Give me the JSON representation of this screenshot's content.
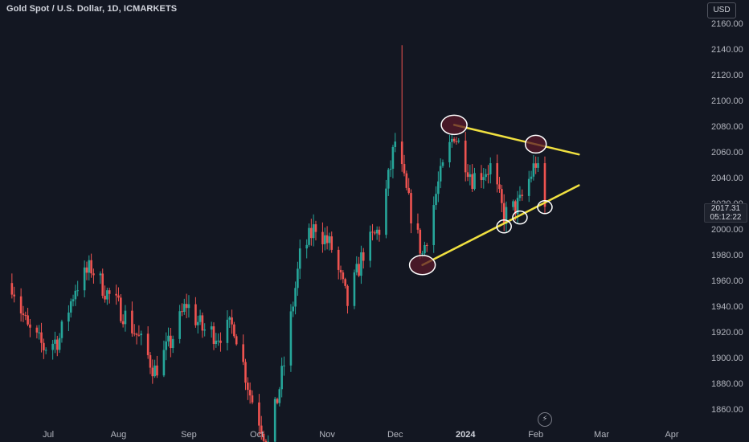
{
  "header": {
    "title": "Gold Spot / U.S. Dollar, 1D, ICMARKETS"
  },
  "currency_button": "USD",
  "price_tag": {
    "price": "2017.31",
    "countdown": "05:12:22"
  },
  "icons": {
    "bolt": "lightning-icon"
  },
  "colors": {
    "background": "#131722",
    "bull": "#26a69a",
    "bear": "#ef5350",
    "trendline": "#f0e040",
    "circle_fill": "#5a1a2a",
    "circle_stroke": "#ffffff"
  },
  "chart_data": {
    "type": "candlestick",
    "title": "Gold Spot / U.S. Dollar, 1D, ICMARKETS",
    "ylim": [
      1850,
      2168
    ],
    "y_ticks": [
      1860,
      1880,
      1900,
      1920,
      1940,
      1960,
      1980,
      2000,
      2020,
      2040,
      2060,
      2080,
      2100,
      2120,
      2140,
      2160
    ],
    "y_tick_labels": [
      "1860.00",
      "1880.00",
      "1900.00",
      "1920.00",
      "1940.00",
      "1960.00",
      "1980.00",
      "2000.00",
      "2020.00",
      "2040.00",
      "2060.00",
      "2080.00",
      "2100.00",
      "2120.00",
      "2140.00",
      "2160.00"
    ],
    "x_ticks": [
      {
        "label": "Jul",
        "date": "2023-07-01",
        "bold": false
      },
      {
        "label": "Aug",
        "date": "2023-08-01",
        "bold": false
      },
      {
        "label": "Sep",
        "date": "2023-09-01",
        "bold": false
      },
      {
        "label": "Oct",
        "date": "2023-10-01",
        "bold": false
      },
      {
        "label": "Nov",
        "date": "2023-11-01",
        "bold": false
      },
      {
        "label": "Dec",
        "date": "2023-12-01",
        "bold": false
      },
      {
        "label": "2024",
        "date": "2024-01-01",
        "bold": true
      },
      {
        "label": "Feb",
        "date": "2024-02-01",
        "bold": false
      },
      {
        "label": "Mar",
        "date": "2024-03-01",
        "bold": false
      },
      {
        "label": "Apr",
        "date": "2024-04-01",
        "bold": false
      }
    ],
    "series": [
      {
        "type": "candles",
        "keyframes": [
          [
            "2023-06-15",
            1958
          ],
          [
            "2023-06-22",
            1922
          ],
          [
            "2023-06-29",
            1908
          ],
          [
            "2023-07-06",
            1915
          ],
          [
            "2023-07-13",
            1955
          ],
          [
            "2023-07-20",
            1970
          ],
          [
            "2023-07-27",
            1950
          ],
          [
            "2023-08-03",
            1935
          ],
          [
            "2023-08-10",
            1915
          ],
          [
            "2023-08-17",
            1890
          ],
          [
            "2023-08-24",
            1912
          ],
          [
            "2023-08-31",
            1942
          ],
          [
            "2023-09-07",
            1922
          ],
          [
            "2023-09-14",
            1918
          ],
          [
            "2023-09-21",
            1925
          ],
          [
            "2023-09-28",
            1872
          ],
          [
            "2023-10-06",
            1832
          ],
          [
            "2023-10-13",
            1895
          ],
          [
            "2023-10-20",
            1978
          ],
          [
            "2023-10-27",
            2003
          ],
          [
            "2023-11-03",
            1985
          ],
          [
            "2023-11-10",
            1942
          ],
          [
            "2023-11-17",
            1982
          ],
          [
            "2023-11-24",
            2000
          ],
          [
            "2023-12-01",
            2068
          ],
          [
            "2023-12-08",
            2012
          ],
          [
            "2023-12-13",
            1980
          ],
          [
            "2023-12-20",
            2035
          ],
          [
            "2023-12-27",
            2075
          ],
          [
            "2024-01-04",
            2040
          ],
          [
            "2024-01-12",
            2048
          ],
          [
            "2024-01-18",
            2010
          ],
          [
            "2024-01-25",
            2020
          ],
          [
            "2024-02-01",
            2052
          ],
          [
            "2024-02-05",
            2017.31
          ]
        ],
        "highlight_highs": [
          [
            "2023-12-04",
            2143
          ]
        ]
      }
    ],
    "annotations": {
      "trendlines": [
        {
          "name": "resistance",
          "from": [
            "2023-12-27",
            2081
          ],
          "to": [
            "2024-02-20",
            2058
          ]
        },
        {
          "name": "support",
          "from": [
            "2023-12-13",
            1972
          ],
          "to": [
            "2024-02-20",
            2034
          ]
        }
      ],
      "circles": [
        {
          "date": "2023-12-13",
          "price": 1972,
          "size": "large"
        },
        {
          "date": "2023-12-27",
          "price": 2081,
          "size": "large"
        },
        {
          "date": "2024-02-01",
          "price": 2066,
          "size": "medium"
        },
        {
          "date": "2024-01-18",
          "price": 2002,
          "size": "small"
        },
        {
          "date": "2024-01-25",
          "price": 2009,
          "size": "small"
        },
        {
          "date": "2024-02-05",
          "price": 2017,
          "size": "small"
        }
      ]
    }
  }
}
